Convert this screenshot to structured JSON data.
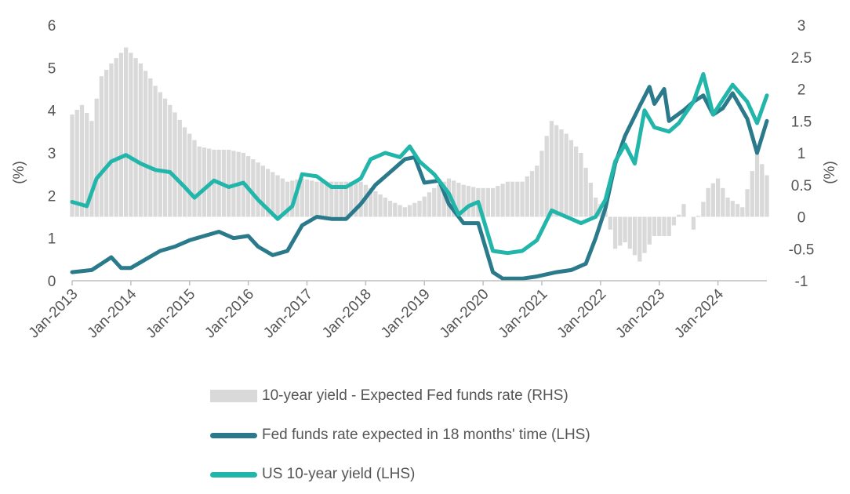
{
  "chart_data": {
    "type": "line",
    "y_left": {
      "label": "(%)",
      "ylim": [
        0,
        6
      ],
      "ticks": [
        "0",
        "1",
        "2",
        "3",
        "4",
        "5",
        "6"
      ]
    },
    "y_right": {
      "label": "(%)",
      "ylim": [
        -1,
        3
      ],
      "ticks": [
        "-1",
        "-0.5",
        "0",
        "0.5",
        "1",
        "1.5",
        "2",
        "2.5",
        "3"
      ]
    },
    "x": {
      "start": "2013-01",
      "end": "2024-11",
      "ticks": [
        "Jan-2013",
        "Jan-2014",
        "Jan-2015",
        "Jan-2016",
        "Jan-2017",
        "Jan-2018",
        "Jan-2019",
        "Jan-2020",
        "Jan-2021",
        "Jan-2022",
        "Jan-2023",
        "Jan-2024"
      ]
    },
    "grid": false,
    "legend_position": "bottom",
    "series": [
      {
        "name": "10-year yield - Expected Fed funds rate (RHS)",
        "kind": "bar",
        "axis": "right",
        "color": "#d9d9d9",
        "points": [
          [
            "2013-01",
            1.6
          ],
          [
            "2013-03",
            1.75
          ],
          [
            "2013-05",
            1.5
          ],
          [
            "2013-07",
            2.2
          ],
          [
            "2013-09",
            2.4
          ],
          [
            "2013-12",
            2.65
          ],
          [
            "2014-03",
            2.4
          ],
          [
            "2014-06",
            2.05
          ],
          [
            "2014-09",
            1.75
          ],
          [
            "2014-12",
            1.4
          ],
          [
            "2015-03",
            1.1
          ],
          [
            "2015-06",
            1.05
          ],
          [
            "2015-09",
            1.05
          ],
          [
            "2015-12",
            1.0
          ],
          [
            "2016-03",
            0.85
          ],
          [
            "2016-06",
            0.7
          ],
          [
            "2016-09",
            0.55
          ],
          [
            "2016-12",
            0.6
          ],
          [
            "2017-03",
            0.55
          ],
          [
            "2017-06",
            0.55
          ],
          [
            "2017-09",
            0.55
          ],
          [
            "2017-12",
            0.55
          ],
          [
            "2018-03",
            0.4
          ],
          [
            "2018-06",
            0.25
          ],
          [
            "2018-09",
            0.15
          ],
          [
            "2018-12",
            0.25
          ],
          [
            "2019-03",
            0.45
          ],
          [
            "2019-06",
            0.6
          ],
          [
            "2019-09",
            0.5
          ],
          [
            "2019-12",
            0.45
          ],
          [
            "2020-03",
            0.45
          ],
          [
            "2020-06",
            0.55
          ],
          [
            "2020-09",
            0.55
          ],
          [
            "2020-12",
            0.8
          ],
          [
            "2021-03",
            1.5
          ],
          [
            "2021-06",
            1.3
          ],
          [
            "2021-09",
            1.0
          ],
          [
            "2021-12",
            0.3
          ],
          [
            "2022-02",
            0.1
          ],
          [
            "2022-04",
            -0.5
          ],
          [
            "2022-06",
            -0.4
          ],
          [
            "2022-09",
            -0.7
          ],
          [
            "2022-12",
            -0.3
          ],
          [
            "2023-03",
            -0.3
          ],
          [
            "2023-06",
            0.2
          ],
          [
            "2023-08",
            -0.2
          ],
          [
            "2023-11",
            0.45
          ],
          [
            "2024-01",
            0.6
          ],
          [
            "2024-03",
            0.3
          ],
          [
            "2024-06",
            0.15
          ],
          [
            "2024-09",
            1.0
          ],
          [
            "2024-11",
            0.65
          ]
        ]
      },
      {
        "name": "Fed funds rate expected in 18 months' time (LHS)",
        "kind": "line",
        "axis": "left",
        "color": "#2a7a8c",
        "points": [
          [
            "2013-01",
            0.2
          ],
          [
            "2013-05",
            0.25
          ],
          [
            "2013-07",
            0.4
          ],
          [
            "2013-09",
            0.55
          ],
          [
            "2013-11",
            0.3
          ],
          [
            "2014-01",
            0.3
          ],
          [
            "2014-04",
            0.5
          ],
          [
            "2014-07",
            0.7
          ],
          [
            "2014-10",
            0.8
          ],
          [
            "2015-01",
            0.95
          ],
          [
            "2015-04",
            1.05
          ],
          [
            "2015-07",
            1.15
          ],
          [
            "2015-10",
            1.0
          ],
          [
            "2016-01",
            1.05
          ],
          [
            "2016-03",
            0.8
          ],
          [
            "2016-06",
            0.6
          ],
          [
            "2016-09",
            0.7
          ],
          [
            "2016-12",
            1.3
          ],
          [
            "2017-03",
            1.5
          ],
          [
            "2017-06",
            1.45
          ],
          [
            "2017-09",
            1.45
          ],
          [
            "2017-12",
            1.8
          ],
          [
            "2018-03",
            2.25
          ],
          [
            "2018-06",
            2.55
          ],
          [
            "2018-09",
            2.85
          ],
          [
            "2018-11",
            2.9
          ],
          [
            "2019-01",
            2.3
          ],
          [
            "2019-04",
            2.35
          ],
          [
            "2019-06",
            1.8
          ],
          [
            "2019-09",
            1.35
          ],
          [
            "2019-12",
            1.35
          ],
          [
            "2020-03",
            0.2
          ],
          [
            "2020-05",
            0.05
          ],
          [
            "2020-09",
            0.05
          ],
          [
            "2020-12",
            0.1
          ],
          [
            "2021-04",
            0.2
          ],
          [
            "2021-07",
            0.25
          ],
          [
            "2021-10",
            0.4
          ],
          [
            "2021-12",
            1.0
          ],
          [
            "2022-02",
            1.7
          ],
          [
            "2022-04",
            2.75
          ],
          [
            "2022-06",
            3.4
          ],
          [
            "2022-09",
            4.1
          ],
          [
            "2022-11",
            4.55
          ],
          [
            "2022-12",
            4.15
          ],
          [
            "2023-02",
            4.5
          ],
          [
            "2023-03",
            3.75
          ],
          [
            "2023-06",
            4.0
          ],
          [
            "2023-08",
            4.2
          ],
          [
            "2023-10",
            4.35
          ],
          [
            "2023-12",
            3.9
          ],
          [
            "2024-02",
            4.05
          ],
          [
            "2024-04",
            4.4
          ],
          [
            "2024-07",
            3.8
          ],
          [
            "2024-09",
            3.0
          ],
          [
            "2024-11",
            3.75
          ]
        ]
      },
      {
        "name": "US 10-year yield (LHS)",
        "kind": "line",
        "axis": "left",
        "color": "#22b5aa",
        "points": [
          [
            "2013-01",
            1.85
          ],
          [
            "2013-04",
            1.75
          ],
          [
            "2013-06",
            2.4
          ],
          [
            "2013-09",
            2.8
          ],
          [
            "2013-12",
            2.95
          ],
          [
            "2014-03",
            2.75
          ],
          [
            "2014-06",
            2.6
          ],
          [
            "2014-09",
            2.55
          ],
          [
            "2014-12",
            2.2
          ],
          [
            "2015-02",
            1.95
          ],
          [
            "2015-06",
            2.35
          ],
          [
            "2015-09",
            2.2
          ],
          [
            "2015-12",
            2.3
          ],
          [
            "2016-03",
            1.9
          ],
          [
            "2016-07",
            1.45
          ],
          [
            "2016-10",
            1.75
          ],
          [
            "2016-12",
            2.5
          ],
          [
            "2017-03",
            2.45
          ],
          [
            "2017-06",
            2.2
          ],
          [
            "2017-09",
            2.2
          ],
          [
            "2017-12",
            2.4
          ],
          [
            "2018-02",
            2.85
          ],
          [
            "2018-05",
            3.0
          ],
          [
            "2018-08",
            2.9
          ],
          [
            "2018-10",
            3.15
          ],
          [
            "2018-12",
            2.8
          ],
          [
            "2019-03",
            2.5
          ],
          [
            "2019-06",
            2.05
          ],
          [
            "2019-08",
            1.55
          ],
          [
            "2019-10",
            1.75
          ],
          [
            "2019-12",
            1.85
          ],
          [
            "2020-03",
            0.7
          ],
          [
            "2020-06",
            0.65
          ],
          [
            "2020-09",
            0.7
          ],
          [
            "2020-12",
            0.95
          ],
          [
            "2021-03",
            1.65
          ],
          [
            "2021-06",
            1.5
          ],
          [
            "2021-09",
            1.35
          ],
          [
            "2021-12",
            1.5
          ],
          [
            "2022-02",
            1.9
          ],
          [
            "2022-04",
            2.8
          ],
          [
            "2022-06",
            3.2
          ],
          [
            "2022-08",
            2.75
          ],
          [
            "2022-10",
            4.0
          ],
          [
            "2022-12",
            3.6
          ],
          [
            "2023-03",
            3.5
          ],
          [
            "2023-05",
            3.7
          ],
          [
            "2023-08",
            4.2
          ],
          [
            "2023-10",
            4.85
          ],
          [
            "2023-12",
            3.9
          ],
          [
            "2024-02",
            4.25
          ],
          [
            "2024-04",
            4.6
          ],
          [
            "2024-07",
            4.2
          ],
          [
            "2024-09",
            3.7
          ],
          [
            "2024-11",
            4.35
          ]
        ]
      }
    ]
  }
}
